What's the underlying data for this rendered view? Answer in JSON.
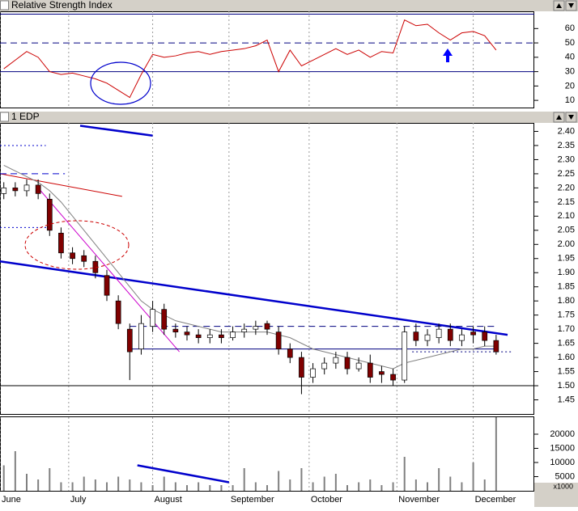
{
  "chart_data": [
    {
      "type": "line",
      "title": "Relative Strength Index",
      "color": "#cc0000",
      "x": [
        1,
        4,
        7,
        10,
        13,
        16,
        19,
        22,
        25,
        28,
        31,
        34,
        37,
        40,
        43,
        46,
        49,
        52,
        55,
        58,
        61,
        64,
        67,
        70,
        73,
        76,
        79,
        82,
        85,
        88,
        91,
        94,
        97,
        100,
        103,
        106,
        109,
        112,
        115,
        118,
        121,
        124,
        127,
        130
      ],
      "values": [
        32,
        38,
        44,
        40,
        30,
        28,
        29,
        27,
        25,
        22,
        17,
        12,
        28,
        42,
        40,
        41,
        43,
        44,
        42,
        44,
        45,
        46,
        48,
        52,
        30,
        45,
        34,
        38,
        42,
        46,
        42,
        45,
        40,
        44,
        43,
        66,
        62,
        63,
        57,
        52,
        57,
        58,
        55,
        45
      ],
      "xlim": [
        0,
        140
      ],
      "ylim": [
        5,
        72
      ],
      "yticks": [
        60,
        50,
        40,
        30,
        20,
        10
      ],
      "levels": [
        {
          "value": 70,
          "style": "solid",
          "color": "#000080"
        },
        {
          "value": 50,
          "style": "dashed",
          "color": "#000080"
        },
        {
          "value": 30,
          "style": "solid",
          "color": "#000080"
        }
      ]
    },
    {
      "type": "candlestick",
      "title": "1 EDP",
      "up_color": "#ffffff",
      "down_color": "#800000",
      "x": [
        1,
        4,
        7,
        10,
        13,
        16,
        19,
        22,
        25,
        28,
        31,
        34,
        37,
        40,
        43,
        46,
        49,
        52,
        55,
        58,
        61,
        64,
        67,
        70,
        73,
        76,
        79,
        82,
        85,
        88,
        91,
        94,
        97,
        100,
        103,
        106,
        109,
        112,
        115,
        118,
        121,
        124,
        127,
        130
      ],
      "open": [
        2.18,
        2.2,
        2.19,
        2.21,
        2.16,
        2.04,
        1.97,
        1.96,
        1.94,
        1.89,
        1.8,
        1.7,
        1.63,
        1.71,
        1.77,
        1.7,
        1.69,
        1.68,
        1.67,
        1.68,
        1.67,
        1.69,
        1.7,
        1.72,
        1.69,
        1.63,
        1.6,
        1.53,
        1.56,
        1.58,
        1.6,
        1.56,
        1.58,
        1.55,
        1.54,
        1.52,
        1.69,
        1.66,
        1.67,
        1.7,
        1.66,
        1.69,
        1.69,
        1.66
      ],
      "high": [
        2.22,
        2.22,
        2.23,
        2.23,
        2.18,
        2.06,
        1.99,
        1.98,
        1.96,
        1.91,
        1.82,
        1.72,
        1.75,
        1.8,
        1.79,
        1.72,
        1.71,
        1.7,
        1.7,
        1.7,
        1.71,
        1.72,
        1.73,
        1.73,
        1.71,
        1.65,
        1.62,
        1.58,
        1.6,
        1.62,
        1.62,
        1.6,
        1.61,
        1.57,
        1.56,
        1.71,
        1.72,
        1.7,
        1.72,
        1.72,
        1.7,
        1.71,
        1.71,
        1.68
      ],
      "low": [
        2.16,
        2.17,
        2.17,
        2.16,
        2.03,
        1.95,
        1.93,
        1.92,
        1.88,
        1.8,
        1.7,
        1.52,
        1.61,
        1.69,
        1.68,
        1.67,
        1.66,
        1.65,
        1.65,
        1.65,
        1.66,
        1.67,
        1.68,
        1.68,
        1.61,
        1.58,
        1.47,
        1.51,
        1.54,
        1.56,
        1.54,
        1.55,
        1.51,
        1.51,
        1.5,
        1.51,
        1.64,
        1.64,
        1.65,
        1.64,
        1.64,
        1.65,
        1.64,
        1.61
      ],
      "close": [
        2.2,
        2.19,
        2.21,
        2.18,
        2.05,
        1.97,
        1.95,
        1.94,
        1.9,
        1.82,
        1.72,
        1.62,
        1.72,
        1.77,
        1.7,
        1.69,
        1.68,
        1.67,
        1.68,
        1.67,
        1.69,
        1.7,
        1.71,
        1.7,
        1.63,
        1.6,
        1.53,
        1.56,
        1.58,
        1.6,
        1.56,
        1.58,
        1.53,
        1.54,
        1.52,
        1.69,
        1.66,
        1.68,
        1.7,
        1.66,
        1.68,
        1.68,
        1.66,
        1.62
      ],
      "ma": {
        "color": "#808080",
        "values": [
          2.28,
          2.26,
          2.24,
          2.22,
          2.19,
          2.15,
          2.1,
          2.05,
          2.0,
          1.95,
          1.9,
          1.85,
          1.8,
          1.77,
          1.75,
          1.73,
          1.72,
          1.71,
          1.7,
          1.69,
          1.69,
          1.69,
          1.69,
          1.69,
          1.68,
          1.67,
          1.65,
          1.63,
          1.62,
          1.61,
          1.6,
          1.59,
          1.58,
          1.57,
          1.56,
          1.58,
          1.59,
          1.6,
          1.61,
          1.62,
          1.63,
          1.63,
          1.64,
          1.64
        ]
      },
      "xlim": [
        0,
        140
      ],
      "ylim": [
        1.4,
        2.43
      ],
      "yticks": [
        {
          "value": 2.4,
          "label": "2.40"
        },
        2.35,
        {
          "value": 2.3,
          "label": "2.30"
        },
        2.25,
        {
          "value": 2.2,
          "label": "2.20"
        },
        2.15,
        {
          "value": 2.1,
          "label": "2.10"
        },
        2.05,
        {
          "value": 2.0,
          "label": "2.00"
        },
        1.95,
        {
          "value": 1.9,
          "label": "1.90"
        },
        1.85,
        {
          "value": 1.8,
          "label": "1.80"
        },
        1.75,
        {
          "value": 1.7,
          "label": "1.70"
        },
        1.65,
        {
          "value": 1.6,
          "label": "1.60"
        },
        1.55,
        {
          "value": 1.5,
          "label": "1.50"
        },
        1.45
      ],
      "trendlines": [
        {
          "color": "#0000cc",
          "style": "solid",
          "width": 2.5,
          "points": [
            [
              0,
              1.94
            ],
            [
              133,
              1.68
            ]
          ]
        },
        {
          "color": "#0000cc",
          "style": "solid",
          "width": 2.5,
          "points": [
            [
              21,
              2.42
            ],
            [
              40,
              2.385
            ]
          ]
        },
        {
          "color": "#cc0000",
          "style": "solid",
          "width": 1,
          "points": [
            [
              0,
              2.25
            ],
            [
              32,
              2.17
            ]
          ]
        },
        {
          "color": "#cc00cc",
          "style": "solid",
          "width": 1,
          "points": [
            [
              10,
              2.2
            ],
            [
              47,
              1.62
            ]
          ]
        },
        {
          "color": "#0000cc",
          "style": "dotted",
          "width": 1,
          "points": [
            [
              0,
              2.35
            ],
            [
              12,
              2.35
            ]
          ]
        },
        {
          "color": "#0000cc",
          "style": "dashed",
          "width": 1,
          "points": [
            [
              0,
              2.25
            ],
            [
              17,
              2.25
            ]
          ]
        },
        {
          "color": "#0000cc",
          "style": "dotted",
          "width": 1,
          "points": [
            [
              0,
              2.06
            ],
            [
              13,
              2.06
            ]
          ]
        },
        {
          "color": "#000080",
          "style": "dashed",
          "width": 1,
          "points": [
            [
              34,
              1.71
            ],
            [
              130,
              1.71
            ]
          ]
        },
        {
          "color": "#000080",
          "style": "solid",
          "width": 1,
          "points": [
            [
              34,
              1.63
            ],
            [
              130,
              1.63
            ]
          ]
        },
        {
          "color": "#000080",
          "style": "dotted",
          "width": 1,
          "points": [
            [
              108,
              1.62
            ],
            [
              134,
              1.62
            ]
          ]
        },
        {
          "color": "#000000",
          "style": "solid",
          "width": 1,
          "points": [
            [
              0,
              1.5
            ],
            [
              140,
              1.5
            ]
          ]
        }
      ]
    },
    {
      "type": "bar",
      "color": "#808080",
      "unit_label": "x1000",
      "x": [
        1,
        4,
        7,
        10,
        13,
        16,
        19,
        22,
        25,
        28,
        31,
        34,
        37,
        40,
        43,
        46,
        49,
        52,
        55,
        58,
        61,
        64,
        67,
        70,
        73,
        76,
        79,
        82,
        85,
        88,
        91,
        94,
        97,
        100,
        103,
        106,
        109,
        112,
        115,
        118,
        121,
        124,
        127,
        130
      ],
      "values": [
        9000,
        14000,
        6000,
        4000,
        8000,
        3000,
        3000,
        5000,
        4000,
        3000,
        5000,
        4000,
        3000,
        2000,
        5000,
        3000,
        2000,
        3000,
        2000,
        2000,
        2000,
        8000,
        3000,
        2000,
        7000,
        4000,
        8000,
        3000,
        5000,
        6000,
        2000,
        3000,
        4000,
        2000,
        3000,
        12000,
        4000,
        3000,
        8000,
        5000,
        3000,
        10000,
        4000,
        26000
      ],
      "xlim": [
        0,
        140
      ],
      "ylim": [
        0,
        26000
      ],
      "yticks": [
        20000,
        15000,
        10000,
        5000
      ],
      "xticks": [
        {
          "value": 0,
          "label": "June"
        },
        {
          "value": 18,
          "label": "July"
        },
        {
          "value": 40,
          "label": "August"
        },
        {
          "value": 60,
          "label": "September"
        },
        {
          "value": 81,
          "label": "October"
        },
        {
          "value": 104,
          "label": "November"
        },
        {
          "value": 124,
          "label": "December"
        }
      ],
      "trendlines": [
        {
          "color": "#0000cc",
          "style": "solid",
          "width": 2.5,
          "points": [
            [
              36,
              9000
            ],
            [
              60,
              3000
            ]
          ]
        }
      ]
    }
  ]
}
